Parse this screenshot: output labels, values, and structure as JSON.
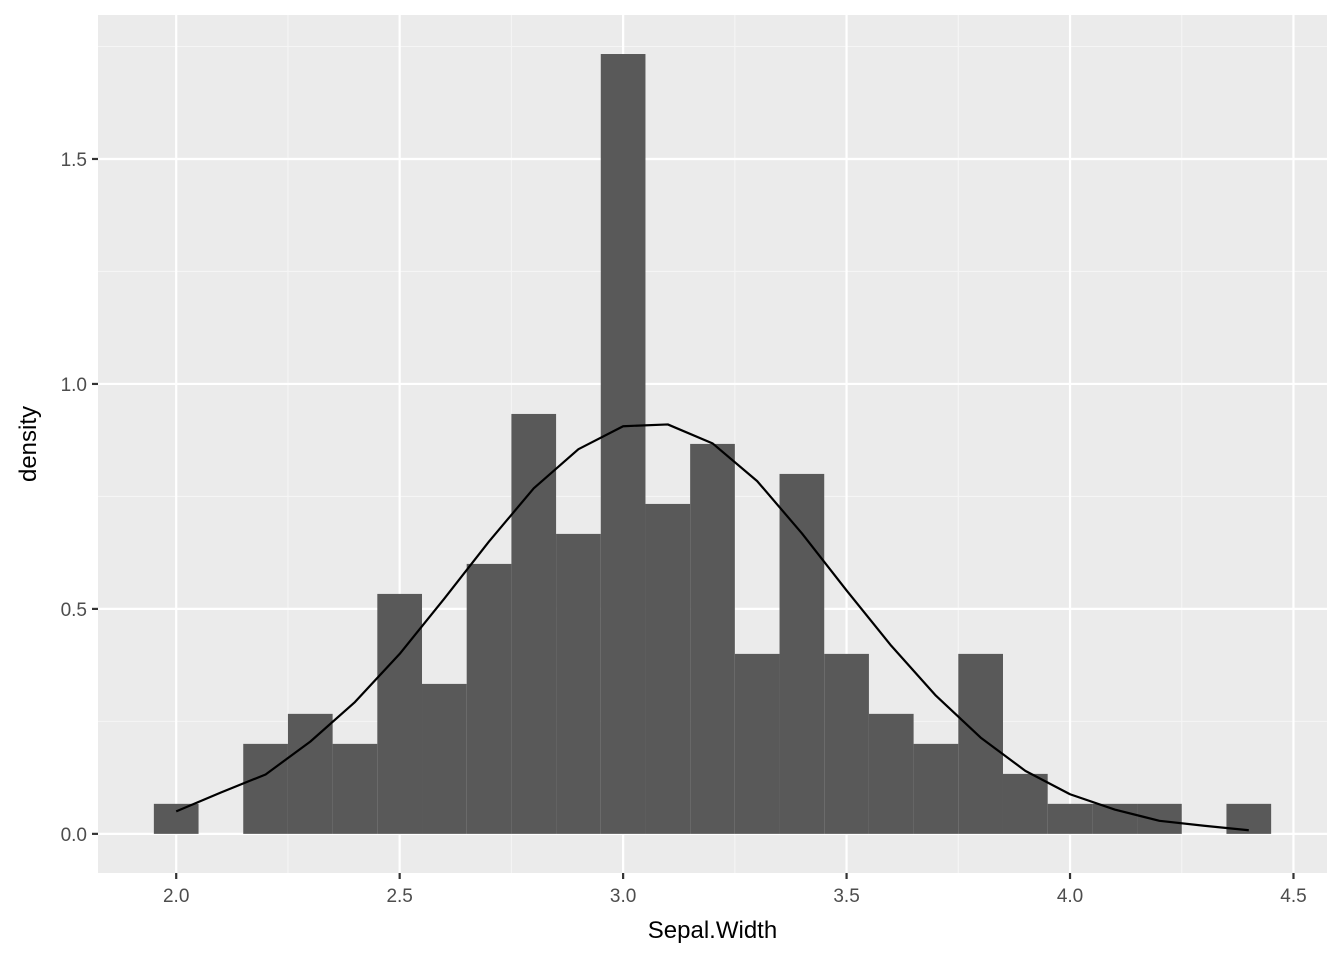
{
  "chart_data": {
    "type": "bar",
    "subtype": "histogram",
    "title": "",
    "xlabel": "Sepal.Width",
    "ylabel": "density",
    "xlim": [
      1.825,
      4.575
    ],
    "ylim": [
      -0.087,
      1.82
    ],
    "x_ticks": [
      2.0,
      2.5,
      3.0,
      3.5,
      4.0,
      4.5
    ],
    "x_tick_labels": [
      "2.0",
      "2.5",
      "3.0",
      "3.5",
      "4.0",
      "4.5"
    ],
    "y_ticks": [
      0.0,
      0.5,
      1.0,
      1.5
    ],
    "y_tick_labels": [
      "0.0",
      "0.5",
      "1.0",
      "1.5"
    ],
    "grid": true,
    "legend": "none",
    "bin_width": 0.1,
    "bins": [
      {
        "x": 2.0,
        "density": 0.0667
      },
      {
        "x": 2.1,
        "density": 0.0
      },
      {
        "x": 2.2,
        "density": 0.2
      },
      {
        "x": 2.3,
        "density": 0.2667
      },
      {
        "x": 2.4,
        "density": 0.2
      },
      {
        "x": 2.5,
        "density": 0.5333
      },
      {
        "x": 2.6,
        "density": 0.3333
      },
      {
        "x": 2.7,
        "density": 0.6
      },
      {
        "x": 2.8,
        "density": 0.9333
      },
      {
        "x": 2.9,
        "density": 0.6667
      },
      {
        "x": 3.0,
        "density": 1.7333
      },
      {
        "x": 3.1,
        "density": 0.7333
      },
      {
        "x": 3.2,
        "density": 0.8667
      },
      {
        "x": 3.3,
        "density": 0.4
      },
      {
        "x": 3.4,
        "density": 0.8
      },
      {
        "x": 3.5,
        "density": 0.4
      },
      {
        "x": 3.6,
        "density": 0.2667
      },
      {
        "x": 3.7,
        "density": 0.2
      },
      {
        "x": 3.8,
        "density": 0.4
      },
      {
        "x": 3.9,
        "density": 0.1333
      },
      {
        "x": 4.0,
        "density": 0.0667
      },
      {
        "x": 4.1,
        "density": 0.0667
      },
      {
        "x": 4.2,
        "density": 0.0667
      },
      {
        "x": 4.3,
        "density": 0.0
      },
      {
        "x": 4.4,
        "density": 0.0667
      }
    ],
    "density_curve": [
      {
        "x": 2.0,
        "y": 0.05
      },
      {
        "x": 2.1,
        "y": 0.092
      },
      {
        "x": 2.2,
        "y": 0.132
      },
      {
        "x": 2.3,
        "y": 0.205
      },
      {
        "x": 2.4,
        "y": 0.293
      },
      {
        "x": 2.5,
        "y": 0.4
      },
      {
        "x": 2.6,
        "y": 0.523
      },
      {
        "x": 2.7,
        "y": 0.65
      },
      {
        "x": 2.8,
        "y": 0.768
      },
      {
        "x": 2.9,
        "y": 0.855
      },
      {
        "x": 3.0,
        "y": 0.906
      },
      {
        "x": 3.1,
        "y": 0.91
      },
      {
        "x": 3.2,
        "y": 0.868
      },
      {
        "x": 3.3,
        "y": 0.784
      },
      {
        "x": 3.4,
        "y": 0.668
      },
      {
        "x": 3.5,
        "y": 0.541
      },
      {
        "x": 3.6,
        "y": 0.418
      },
      {
        "x": 3.7,
        "y": 0.307
      },
      {
        "x": 3.8,
        "y": 0.214
      },
      {
        "x": 3.9,
        "y": 0.14
      },
      {
        "x": 4.0,
        "y": 0.088
      },
      {
        "x": 4.1,
        "y": 0.054
      },
      {
        "x": 4.2,
        "y": 0.029
      },
      {
        "x": 4.3,
        "y": 0.018
      },
      {
        "x": 4.4,
        "y": 0.008
      }
    ],
    "colors": {
      "panel_background": "#EBEBEB",
      "grid_major": "#FFFFFF",
      "grid_minor": "#F5F5F5",
      "bar_fill": "#595959",
      "curve": "#000000",
      "tick_text": "#4D4D4D",
      "tick_mark": "#333333",
      "axis_title": "#000000"
    }
  }
}
